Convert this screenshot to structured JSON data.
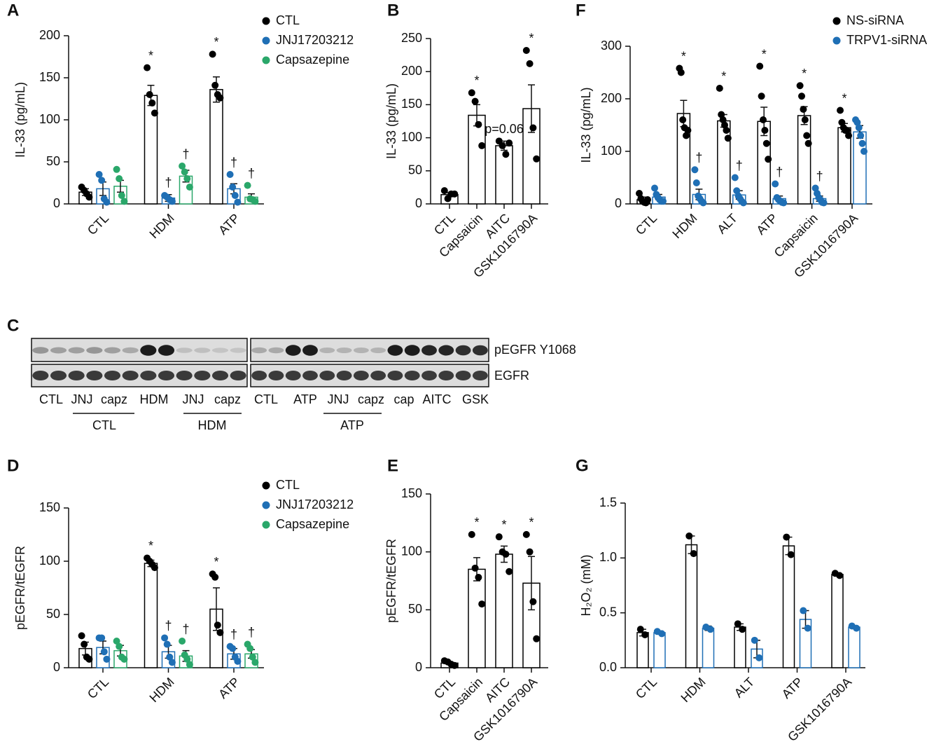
{
  "chart_data": [
    {
      "panel": "A",
      "type": "bar",
      "ylabel": "IL-33 (pg/mL)",
      "categories": [
        "CTL",
        "HDM",
        "ATP"
      ],
      "ylim": [
        0,
        200
      ],
      "yticks": [
        0,
        50,
        100,
        150,
        200
      ],
      "series": [
        {
          "name": "CTL",
          "color": "#000000",
          "values": [
            14,
            129,
            136
          ],
          "errors": [
            4,
            12,
            15
          ],
          "points": [
            [
              20,
              16,
              12,
              8
            ],
            [
              162,
              130,
              120,
              108
            ],
            [
              178,
              141,
              130,
              126
            ]
          ],
          "annotations": [
            null,
            "*",
            "*"
          ]
        },
        {
          "name": "JNJ17203212",
          "color": "#1f6fb5",
          "values": [
            18,
            7,
            18
          ],
          "errors": [
            8,
            4,
            6
          ],
          "points": [
            [
              35,
              28,
              6,
              2
            ],
            [
              10,
              8,
              5,
              3
            ],
            [
              35,
              20,
              10,
              2
            ]
          ],
          "annotations": [
            null,
            "†",
            "†"
          ]
        },
        {
          "name": "Capsazepine",
          "color": "#2aa76a",
          "values": [
            21,
            33,
            8
          ],
          "errors": [
            7,
            7,
            4
          ],
          "points": [
            [
              41,
              30,
              10,
              3
            ],
            [
              45,
              38,
              30,
              20
            ],
            [
              22,
              6,
              5,
              3
            ]
          ],
          "annotations": [
            null,
            "†",
            "†"
          ]
        }
      ]
    },
    {
      "panel": "B",
      "type": "bar",
      "ylabel": "IL-33 (pg/mL)",
      "categories": [
        "CTL",
        "Capsaicin",
        "AITC",
        "GSK1016790A"
      ],
      "ylim": [
        0,
        250
      ],
      "yticks": [
        0,
        50,
        100,
        150,
        200,
        250
      ],
      "series": [
        {
          "color": "#000000",
          "values": [
            14,
            134,
            88,
            144
          ],
          "errors": [
            3,
            16,
            7,
            36
          ],
          "points": [
            [
              20,
              8,
              15,
              15
            ],
            [
              168,
              155,
              120,
              88
            ],
            [
              95,
              88,
              75,
              92
            ],
            [
              232,
              212,
              115,
              68
            ]
          ],
          "annotations": [
            null,
            "*",
            "p=0.06",
            "*"
          ]
        }
      ]
    },
    {
      "panel": "F",
      "type": "bar",
      "ylabel": "IL-33 (pg/mL)",
      "categories": [
        "CTL",
        "HDM",
        "ALT",
        "ATP",
        "Capsaicin",
        "GSK1016790A"
      ],
      "ylim": [
        0,
        300
      ],
      "yticks": [
        0,
        100,
        200,
        300
      ],
      "series": [
        {
          "name": "NS-siRNA",
          "color": "#000000",
          "values": [
            8,
            172,
            158,
            157,
            168,
            145
          ],
          "errors": [
            5,
            25,
            12,
            27,
            17,
            8
          ],
          "points": [
            [
              20,
              10,
              5,
              3,
              2,
              8
            ],
            [
              258,
              250,
              160,
              145,
              130,
              140
            ],
            [
              220,
              170,
              160,
              150,
              140,
              125
            ],
            [
              262,
              205,
              160,
              140,
              115,
              85
            ],
            [
              225,
              205,
              180,
              160,
              130,
              115
            ],
            [
              178,
              155,
              145,
              140,
              140,
              130
            ]
          ],
          "annotations": [
            null,
            "*",
            "*",
            "*",
            "*",
            "*"
          ]
        },
        {
          "name": "TRPV1-siRNA",
          "color": "#1f6fb5",
          "values": [
            13,
            18,
            17,
            10,
            10,
            137
          ],
          "errors": [
            5,
            10,
            8,
            5,
            5,
            12
          ],
          "points": [
            [
              30,
              18,
              12,
              8,
              5,
              5
            ],
            [
              65,
              40,
              15,
              10,
              5,
              2
            ],
            [
              50,
              25,
              15,
              10,
              5,
              2
            ],
            [
              38,
              12,
              8,
              5,
              3,
              2
            ],
            [
              30,
              20,
              12,
              8,
              3,
              2
            ],
            [
              160,
              155,
              145,
              130,
              115,
              100
            ]
          ],
          "annotations": [
            null,
            "†",
            "†",
            "†",
            "†",
            null
          ]
        }
      ]
    },
    {
      "panel": "D",
      "type": "bar",
      "ylabel": "pEGFR/tEGFR",
      "categories": [
        "CTL",
        "HDM",
        "ATP"
      ],
      "ylim": [
        0,
        150
      ],
      "yticks": [
        0,
        50,
        100,
        150
      ],
      "series": [
        {
          "name": "CTL",
          "color": "#000000",
          "values": [
            18,
            98,
            55
          ],
          "errors": [
            6,
            3,
            20
          ],
          "points": [
            [
              30,
              22,
              10,
              8
            ],
            [
              103,
              100,
              97,
              94
            ],
            [
              88,
              85,
              40,
              33
            ]
          ],
          "annotations": [
            null,
            "*",
            "*"
          ]
        },
        {
          "name": "JNJ17203212",
          "color": "#1f6fb5",
          "values": [
            19,
            15,
            13
          ],
          "errors": [
            6,
            6,
            5
          ],
          "points": [
            [
              28,
              28,
              15,
              8
            ],
            [
              28,
              22,
              10,
              5
            ],
            [
              20,
              18,
              10,
              6
            ]
          ],
          "annotations": [
            null,
            "†",
            "†"
          ]
        },
        {
          "name": "Capsazepine",
          "color": "#2aa76a",
          "values": [
            16,
            11,
            13
          ],
          "errors": [
            5,
            5,
            4
          ],
          "points": [
            [
              25,
              20,
              10,
              8
            ],
            [
              25,
              12,
              8,
              3
            ],
            [
              22,
              18,
              10,
              5
            ]
          ],
          "annotations": [
            null,
            "†",
            "†"
          ]
        }
      ]
    },
    {
      "panel": "E",
      "type": "bar",
      "ylabel": "pEGFR/tEGFR",
      "categories": [
        "CTL",
        "Capsaicin",
        "AITC",
        "GSK1016790A"
      ],
      "ylim": [
        0,
        150
      ],
      "yticks": [
        0,
        50,
        100,
        150
      ],
      "series": [
        {
          "color": "#000000",
          "values": [
            4,
            85,
            98,
            73
          ],
          "errors": [
            1,
            10,
            7,
            23
          ],
          "points": [
            [
              6,
              5,
              3,
              2
            ],
            [
              115,
              86,
              78,
              55
            ],
            [
              113,
              100,
              98,
              83
            ],
            [
              115,
              100,
              57,
              25
            ]
          ],
          "annotations": [
            null,
            "*",
            "*",
            "*"
          ]
        }
      ]
    },
    {
      "panel": "G",
      "type": "bar",
      "ylabel": "H₂O₂ (mM)",
      "categories": [
        "CTL",
        "HDM",
        "ALT",
        "ATP",
        "GSK1016790A"
      ],
      "ylim": [
        0,
        1.5
      ],
      "yticks": [
        {
          "value": 0,
          "label": "0.0"
        },
        {
          "value": 0.5,
          "label": "0.5"
        },
        {
          "value": 1,
          "label": "1.0"
        },
        {
          "value": 1.5,
          "label": "1.5"
        }
      ],
      "series": [
        {
          "color": "#000000",
          "values": [
            0.32,
            1.12,
            0.37,
            1.11,
            0.85
          ],
          "errors": [
            0.03,
            0.08,
            0.03,
            0.08,
            0.01
          ],
          "points": [
            [
              0.35,
              0.3
            ],
            [
              1.2,
              1.04
            ],
            [
              0.4,
              0.35
            ],
            [
              1.19,
              1.03
            ],
            [
              0.86,
              0.84
            ]
          ]
        },
        {
          "color": "#1f6fb5",
          "values": [
            0.32,
            0.36,
            0.17,
            0.44,
            0.37
          ],
          "errors": [
            0.01,
            0.02,
            0.08,
            0.08,
            0.01
          ],
          "points": [
            [
              0.33,
              0.31
            ],
            [
              0.37,
              0.35
            ],
            [
              0.25,
              0.09
            ],
            [
              0.52,
              0.36
            ],
            [
              0.38,
              0.36
            ]
          ]
        }
      ]
    }
  ],
  "blot": {
    "panel": "C",
    "rows": [
      "pEGFR Y1068",
      "EGFR"
    ],
    "lanes": [
      "CTL",
      "JNJ",
      "capz",
      "HDM",
      "JNJ",
      "capz",
      "CTL",
      "ATP",
      "JNJ",
      "capz",
      "cap",
      "AITC",
      "GSK"
    ],
    "groups": [
      "CTL",
      "HDM",
      "ATP"
    ]
  }
}
